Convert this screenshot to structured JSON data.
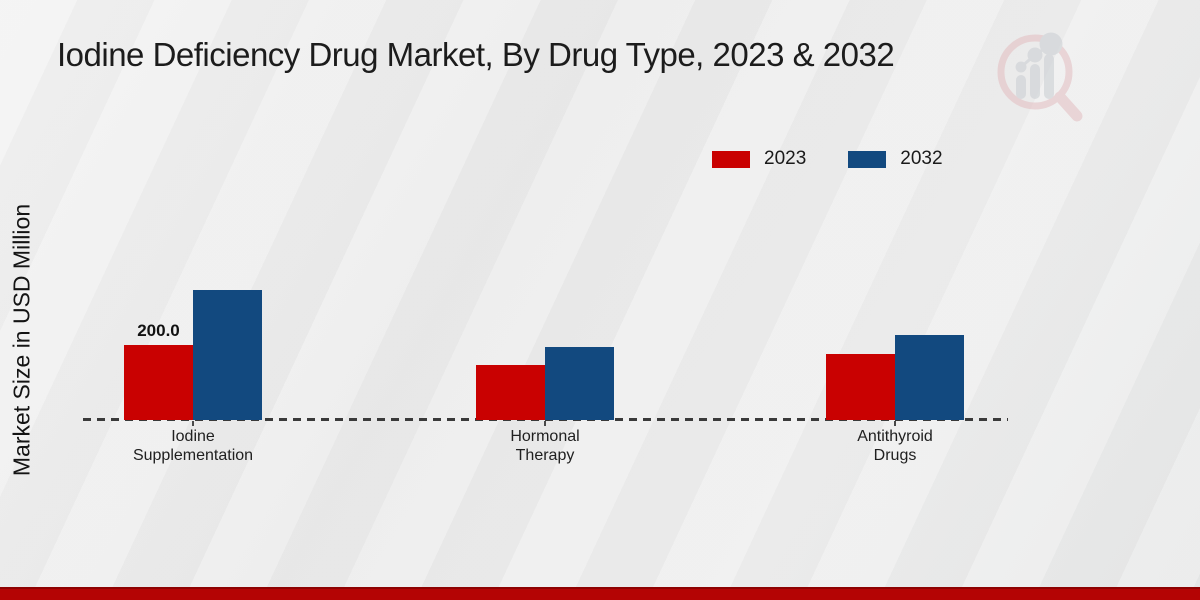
{
  "header": {
    "title": "Iodine Deficiency Drug Market, By Drug Type, 2023 & 2032",
    "logo_icon": "magnifier-bar-chart-logo"
  },
  "chart": {
    "y_axis_label": "Market Size in USD Million",
    "value_label": "200.0"
  },
  "legend": {
    "items": [
      {
        "label": "2023",
        "color": "#c90101"
      },
      {
        "label": "2032",
        "color": "#12497f"
      }
    ]
  },
  "chart_data": {
    "type": "bar",
    "title": "Iodine Deficiency Drug Market, By Drug Type, 2023 & 2032",
    "categories": [
      "Iodine Supplementation",
      "Hormonal Therapy",
      "Antithyroid Drugs"
    ],
    "series": [
      {
        "name": "2023",
        "color": "#c90101",
        "values": [
          200.0,
          146.7,
          176.0
        ]
      },
      {
        "name": "2032",
        "color": "#12497f",
        "values": [
          346.7,
          194.7,
          226.7
        ]
      }
    ],
    "xlabel": "",
    "ylabel": "Market Size in USD Million",
    "ylim": [
      0,
      380
    ],
    "grid": false,
    "legend_position": "top-right",
    "baseline_style": "dashed",
    "data_labels": [
      {
        "series": "2023",
        "category": "Iodine Supplementation",
        "text": "200.0"
      }
    ]
  },
  "colors": {
    "bar_2023": "#c90101",
    "bar_2032": "#12497f",
    "footer_bar": "#b40404",
    "background": "#ebebeb"
  },
  "footer": {}
}
